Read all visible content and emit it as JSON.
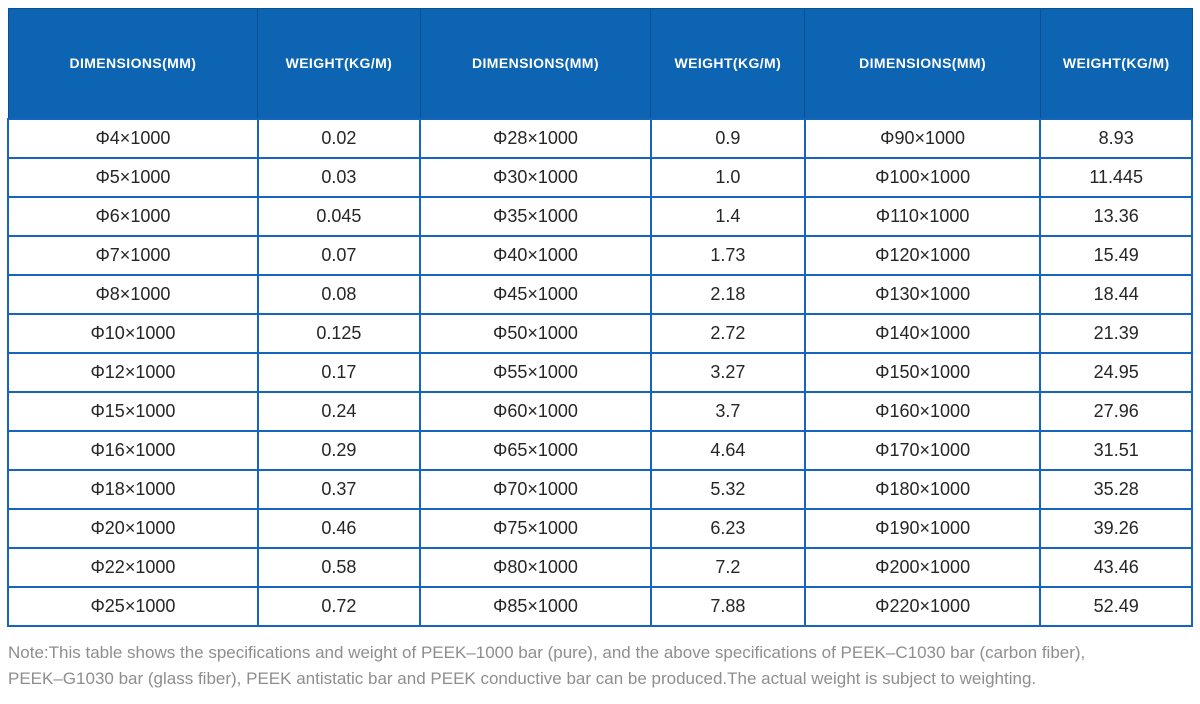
{
  "table": {
    "column_headers": [
      "DIMENSIONS(MM)",
      "WEIGHT(KG/M)",
      "DIMENSIONS(MM)",
      "WEIGHT(KG/M)",
      "DIMENSIONS(MM)",
      "WEIGHT(KG/M)"
    ],
    "rows": [
      [
        "Φ4×1000",
        "0.02",
        "Φ28×1000",
        "0.9",
        "Φ90×1000",
        "8.93"
      ],
      [
        "Φ5×1000",
        "0.03",
        "Φ30×1000",
        "1.0",
        "Φ100×1000",
        "11.445"
      ],
      [
        "Φ6×1000",
        "0.045",
        "Φ35×1000",
        "1.4",
        "Φ110×1000",
        "13.36"
      ],
      [
        "Φ7×1000",
        "0.07",
        "Φ40×1000",
        "1.73",
        "Φ120×1000",
        "15.49"
      ],
      [
        "Φ8×1000",
        "0.08",
        "Φ45×1000",
        "2.18",
        "Φ130×1000",
        "18.44"
      ],
      [
        "Φ10×1000",
        "0.125",
        "Φ50×1000",
        "2.72",
        "Φ140×1000",
        "21.39"
      ],
      [
        "Φ12×1000",
        "0.17",
        "Φ55×1000",
        "3.27",
        "Φ150×1000",
        "24.95"
      ],
      [
        "Φ15×1000",
        "0.24",
        "Φ60×1000",
        "3.7",
        "Φ160×1000",
        "27.96"
      ],
      [
        "Φ16×1000",
        "0.29",
        "Φ65×1000",
        "4.64",
        "Φ170×1000",
        "31.51"
      ],
      [
        "Φ18×1000",
        "0.37",
        "Φ70×1000",
        "5.32",
        "Φ180×1000",
        "35.28"
      ],
      [
        "Φ20×1000",
        "0.46",
        "Φ75×1000",
        "6.23",
        "Φ190×1000",
        "39.26"
      ],
      [
        "Φ22×1000",
        "0.58",
        "Φ80×1000",
        "7.2",
        "Φ200×1000",
        "43.46"
      ],
      [
        "Φ25×1000",
        "0.72",
        "Φ85×1000",
        "7.88",
        "Φ220×1000",
        "52.49"
      ]
    ]
  },
  "note": {
    "lines": [
      "Note:This table shows the specifications and weight of PEEK–1000 bar (pure), and the above specifications of PEEK–C1030 bar (carbon fiber),",
      "PEEK–G1030 bar (glass fiber), PEEK antistatic bar and PEEK conductive bar can be produced.The actual weight is subject to weighting."
    ]
  },
  "colors": {
    "header_bg": "#0c64b2",
    "header_text": "#ffffff",
    "header_divider": "#0a5093",
    "body_border": "#1565bf",
    "cell_text": "#262626",
    "note_text": "#8e8e8e",
    "page_bg": "#ffffff"
  }
}
